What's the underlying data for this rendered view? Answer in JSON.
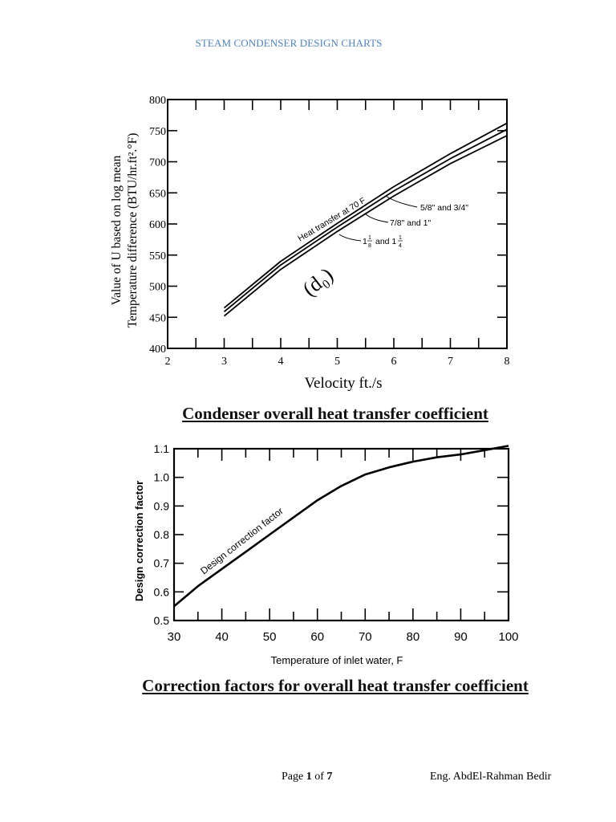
{
  "header": {
    "title": "STEAM CONDENSER DESIGN CHARTS",
    "color": "#4f81bd"
  },
  "captions": {
    "chart1": "Condenser overall heat transfer coefficient",
    "chart2": "Correction factors for overall heat transfer coefficient"
  },
  "footer": {
    "page_prefix": "Page ",
    "page_current": "1",
    "page_sep": " of ",
    "page_total": "7",
    "author": "Eng. AbdEl-Rahman Bedir"
  },
  "chart_data": [
    {
      "type": "line",
      "title": "Condenser overall heat transfer coefficient",
      "xlabel": "Velocity ft./s",
      "ylabel_line1": "Value of U based on log mean",
      "ylabel_line2": "Temperature difference (BTU/hr.ft².°F)",
      "xlim": [
        2,
        8
      ],
      "ylim": [
        400,
        800
      ],
      "x_ticks": [
        "2",
        "3",
        "4",
        "5",
        "6",
        "7",
        "8"
      ],
      "y_ticks": [
        "400",
        "450",
        "500",
        "550",
        "600",
        "650",
        "700",
        "750",
        "800"
      ],
      "annotation_curve": "Heat transfer at 70 F",
      "annotation_handwritten": "(d₀)",
      "x": [
        3,
        4,
        5,
        6,
        7,
        8
      ],
      "series": [
        {
          "name": "5/8\" and 3/4\"",
          "values": [
            465,
            540,
            601,
            660,
            713,
            762
          ]
        },
        {
          "name": "7/8\" and 1\"",
          "values": [
            459,
            534,
            595,
            653,
            705,
            752
          ]
        },
        {
          "name": "1 1/8\" and 1 1/4\"",
          "values": [
            452,
            527,
            588,
            645,
            697,
            742
          ]
        }
      ],
      "legend_labels": [
        "5/8\" and 3/4\"",
        "7/8\" and 1\"",
        "1",
        "1",
        "8",
        "and 1",
        "1",
        "4"
      ],
      "grid": false
    },
    {
      "type": "line",
      "title": "Correction factors for overall heat transfer coefficient",
      "xlabel": "Temperature of inlet water, F",
      "ylabel": "Design correction factor",
      "xlim": [
        30,
        100
      ],
      "ylim": [
        0.5,
        1.1
      ],
      "x_ticks": [
        "30",
        "40",
        "50",
        "60",
        "70",
        "80",
        "90",
        "100"
      ],
      "y_ticks": [
        "0.5",
        "0.6",
        "0.7",
        "0.8",
        "0.9",
        "1.0",
        "1.1"
      ],
      "annotation_curve": "Design correction factor",
      "x": [
        30,
        35,
        40,
        45,
        50,
        55,
        60,
        65,
        70,
        75,
        80,
        85,
        90,
        95,
        100
      ],
      "series": [
        {
          "name": "Design correction factor",
          "values": [
            0.55,
            0.62,
            0.68,
            0.74,
            0.8,
            0.86,
            0.92,
            0.97,
            1.01,
            1.035,
            1.055,
            1.07,
            1.08,
            1.095,
            1.11
          ]
        }
      ],
      "grid": false
    }
  ]
}
